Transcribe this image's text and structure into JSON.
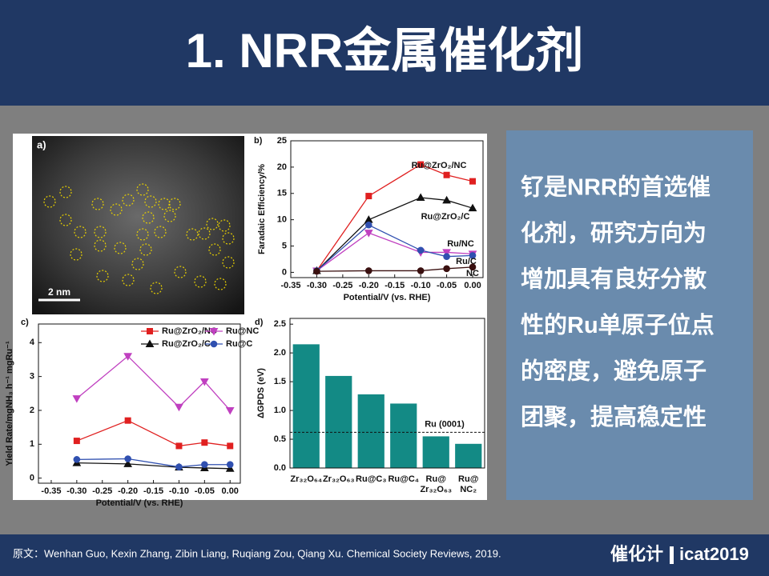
{
  "header": {
    "title": "1. NRR金属催化剂"
  },
  "figure": {
    "panel_a": {
      "label": "a)",
      "scale_bar": "2 nm"
    }
  },
  "chart_data": [
    {
      "type": "line",
      "label": "b)",
      "x": [
        -0.3,
        -0.2,
        -0.1,
        -0.05,
        0
      ],
      "xlim": [
        -0.35,
        0.02
      ],
      "xticks": [
        -0.35,
        {
          "value": -0.3,
          "label": "-0.30"
        },
        -0.25,
        {
          "value": -0.2,
          "label": "-0.20"
        },
        -0.15,
        {
          "value": -0.1,
          "label": "-0.10"
        },
        -0.05,
        {
          "value": 0,
          "label": "0.00"
        }
      ],
      "ylim": [
        -1,
        25
      ],
      "yticks": [
        0,
        5,
        10,
        15,
        20,
        25
      ],
      "xlabel": "Potential/V (vs. RHE)",
      "ylabel": "Faradaic Efficiency/%",
      "legend": "inline",
      "series": [
        {
          "name": "Ru@ZrO₂/NC",
          "color": "#e02020",
          "marker": "square",
          "values": [
            0.3,
            14.5,
            20.5,
            18.5,
            17.3
          ]
        },
        {
          "name": "Ru@ZrO₂/C",
          "color": "#111111",
          "marker": "triangle",
          "values": [
            0.3,
            10,
            14.2,
            13.7,
            12.2
          ]
        },
        {
          "name": "Ru/NC",
          "color": "#c040c0",
          "marker": "triangle-down",
          "values": [
            0.3,
            7.5,
            3.8,
            3.8,
            3.5
          ]
        },
        {
          "name": "Ru/C",
          "color": "#3050b0",
          "marker": "circle",
          "values": [
            0.3,
            9,
            4.2,
            3,
            3.2
          ]
        },
        {
          "name": "NC",
          "color": "#3a1010",
          "marker": "circle",
          "values": [
            0.2,
            0.3,
            0.3,
            0.7,
            1.0
          ]
        }
      ]
    },
    {
      "type": "line",
      "label": "c)",
      "x": [
        -0.3,
        -0.2,
        -0.1,
        -0.05,
        0
      ],
      "xlim": [
        -0.375,
        0.02
      ],
      "xticks": [
        -0.35,
        {
          "value": -0.3,
          "label": "-0.30"
        },
        -0.25,
        {
          "value": -0.2,
          "label": "-0.20"
        },
        -0.15,
        {
          "value": -0.1,
          "label": "-0.10"
        },
        -0.05,
        {
          "value": 0,
          "label": "0.00"
        }
      ],
      "ylim": [
        -0.15,
        4.55
      ],
      "yticks": [
        0,
        1,
        2,
        3,
        4
      ],
      "xlabel": "Potential/V (vs. RHE)",
      "ylabel": "Yield Rate/mgNH₃ h⁻¹ mgRu⁻¹",
      "legend": "top",
      "series": [
        {
          "name": "Ru@ZrO₂/NC",
          "color": "#e02020",
          "marker": "square",
          "values": [
            1.1,
            1.7,
            0.95,
            1.05,
            0.95
          ]
        },
        {
          "name": "Ru@NC",
          "color": "#c040c0",
          "marker": "triangle-down",
          "values": [
            2.35,
            3.6,
            2.1,
            2.85,
            2.0
          ]
        },
        {
          "name": "Ru@ZrO₂/C",
          "color": "#111111",
          "marker": "triangle",
          "values": [
            0.45,
            0.42,
            0.32,
            0.3,
            0.28
          ]
        },
        {
          "name": "Ru@C",
          "color": "#3050b0",
          "marker": "circle",
          "values": [
            0.55,
            0.57,
            0.33,
            0.4,
            0.4
          ]
        }
      ]
    },
    {
      "type": "bar",
      "label": "d)",
      "categories": [
        "Zr₃₂O₆₄",
        "Zr₃₂O₆₃",
        "Ru@C₃",
        "Ru@C₄",
        "Ru@ Zr₃₂O₆₃",
        "Ru@ NC₂"
      ],
      "values": [
        2.15,
        1.6,
        1.28,
        1.12,
        0.55,
        0.42
      ],
      "color": "#138a85",
      "ylim": [
        0,
        2.6
      ],
      "yticks": [
        {
          "value": 0,
          "label": "0.0"
        },
        0.5,
        {
          "value": 1,
          "label": "1.0"
        },
        1.5,
        {
          "value": 2,
          "label": "2.0"
        },
        2.5
      ],
      "ylabel": "ΔGPDS (eV)",
      "reference_line": {
        "value": 0.62,
        "label": "Ru (0001)"
      }
    }
  ],
  "text_box": {
    "lines": [
      "钌是NRR的首选催",
      "化剂，研究方向为",
      "增加具有良好分散",
      "性的Ru单原子位点",
      "的密度，避免原子",
      "团聚，提高稳定性"
    ]
  },
  "footer": {
    "citation": "原文：Wenhan Guo, Kexin Zhang, Zibin Liang, Ruqiang Zou, Qiang Xu. Chemical Society Reviews, 2019.",
    "brand": "催化计",
    "site": "icat2019"
  }
}
